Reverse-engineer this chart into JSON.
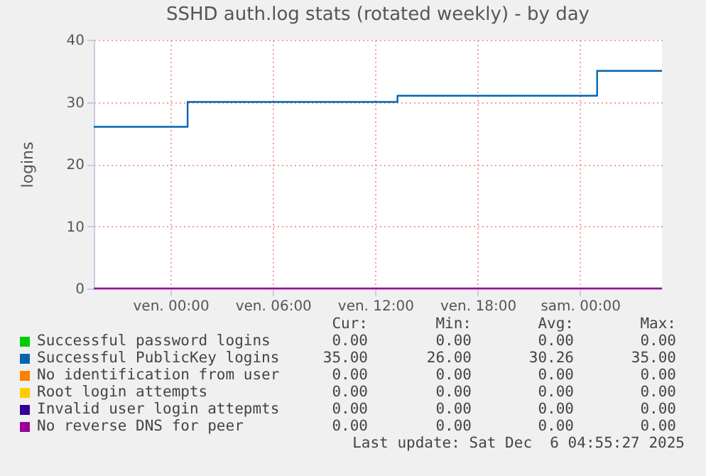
{
  "chart_data": {
    "type": "step",
    "title": "SSHD auth.log stats (rotated weekly) - by day",
    "ylabel": "logins",
    "x": [
      "2025-12-04T19:30",
      "2025-12-05T01:00",
      "2025-12-05T13:18",
      "2025-12-06T01:00",
      "2025-12-06T04:48"
    ],
    "series": [
      {
        "name": "Successful password logins",
        "color": "#00cc00",
        "values": [
          null,
          null,
          null,
          null,
          null
        ]
      },
      {
        "name": "Successful PublicKey logins",
        "color": "#0066b3",
        "values": [
          26,
          30,
          31,
          35,
          35
        ]
      },
      {
        "name": "No identification from user",
        "color": "#ff8000",
        "values": [
          null,
          null,
          null,
          null,
          null
        ]
      },
      {
        "name": "Root login attempts",
        "color": "#ffcc00",
        "values": [
          null,
          null,
          null,
          null,
          null
        ]
      },
      {
        "name": "Invalid user login attepmts",
        "color": "#330099",
        "values": [
          null,
          null,
          null,
          null,
          null
        ]
      },
      {
        "name": "No reverse DNS for peer",
        "color": "#990099",
        "values": [
          0,
          0,
          0,
          0,
          0
        ]
      }
    ],
    "xlim": [
      "2025-12-04T19:30",
      "2025-12-06T04:48"
    ],
    "xticks": [
      {
        "value": "2025-12-05T00:00",
        "label": "ven. 00:00"
      },
      {
        "value": "2025-12-05T06:00",
        "label": "ven. 06:00"
      },
      {
        "value": "2025-12-05T12:00",
        "label": "ven. 12:00"
      },
      {
        "value": "2025-12-05T18:00",
        "label": "ven. 18:00"
      },
      {
        "value": "2025-12-06T00:00",
        "label": "sam. 00:00"
      }
    ],
    "ylim": [
      0,
      40
    ],
    "yticks": [
      0,
      10,
      20,
      30,
      40
    ],
    "grid": true,
    "legend": "bottom",
    "line_style": "solid",
    "annotations": [
      "Cur:",
      "Min:",
      "Avg:",
      "Max:",
      "0.00",
      "0.00",
      "0.00",
      "0.00",
      "35.00",
      "26.00",
      "30.26",
      "35.00",
      "0.00",
      "0.00",
      "0.00",
      "0.00",
      "0.00",
      "0.00",
      "0.00",
      "0.00",
      "0.00",
      "0.00",
      "0.00",
      "0.00",
      "0.00",
      "0.00",
      "0.00",
      "0.00",
      "Last update: Sat Dec  6 04:55:27 2025"
    ]
  }
}
